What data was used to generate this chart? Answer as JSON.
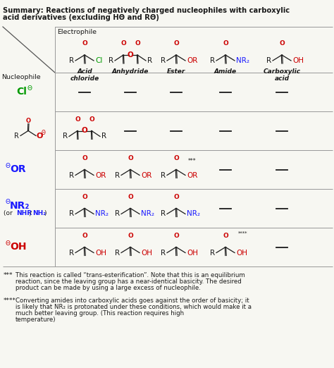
{
  "bg_color": "#f7f7f2",
  "title1": "Summary: Reactions of negatively charged nucleophiles with carboxylic",
  "title2": "acid derivatives (excluding HΘ and RΘ)",
  "col_headers": [
    "Acid\nchloride",
    "Anhydride",
    "Ester",
    "Amide",
    "Carboxylic\nacid"
  ],
  "fn3_text": "This reaction is called “trans-esterification”. Note that this is an equilibrium\nreaction, since the leaving group has a near-identical basicity. The desired\nproduct can be made by using a large excess of nucleophile.",
  "fn4_text": "Converting amides into carboxylic acids goes against the order of basicity; it\nis likely that NR₂ is protonated under these conditions, which would make it a\nmuch better leaving group. (This reaction requires high\ntemperature)"
}
